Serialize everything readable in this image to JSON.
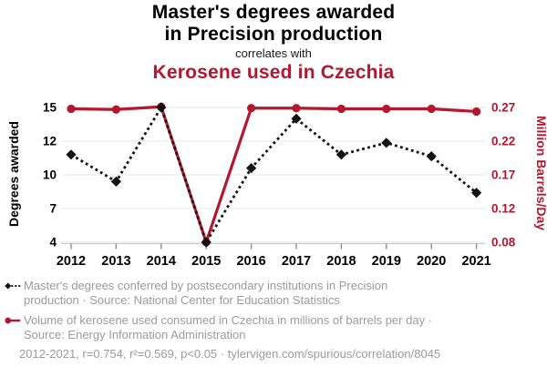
{
  "header": {
    "title_line1": "Master's degrees awarded",
    "title_line2": "in Precision production",
    "connector": "correlates with",
    "subtitle": "Kerosene used in Czechia"
  },
  "colors": {
    "red": "#b5172f",
    "black": "#131313",
    "title_text": "#000000",
    "gray_text": "#9b9b9b",
    "gridline": "#ececec",
    "axis_line": "#cccccc",
    "tick_mark": "#8c8c8c"
  },
  "chart_data": {
    "type": "line",
    "title": "Master's degrees awarded in Precision production correlates with Kerosene used in Czechia",
    "x": [
      2012,
      2013,
      2014,
      2015,
      2016,
      2017,
      2018,
      2019,
      2020,
      2021
    ],
    "x_tick_labels": [
      "2012",
      "2013",
      "2014",
      "2015",
      "2016",
      "2017",
      "2018",
      "2019",
      "2020",
      "2021"
    ],
    "grid": "horizontal",
    "legend_position": "bottom",
    "series": [
      {
        "name": "Master's degrees awarded in Precision production",
        "axis": "left",
        "line_style": "dotted",
        "marker": "diamond",
        "values": [
          11.2,
          9.4,
          15,
          4,
          10.4,
          14,
          11.2,
          11.9,
          11.1,
          8.4
        ]
      },
      {
        "name": "Kerosene used in Czechia",
        "axis": "right",
        "line_style": "solid",
        "marker": "circle",
        "values": [
          0.268,
          0.267,
          0.271,
          0.08,
          0.269,
          0.269,
          0.268,
          0.268,
          0.268,
          0.264
        ]
      }
    ],
    "left_axis": {
      "label": "Degrees awarded",
      "ticks": [
        4,
        7,
        10,
        12,
        15
      ],
      "tick_labels": [
        "4",
        "7",
        "10",
        "12",
        "15"
      ],
      "range": [
        4,
        15
      ]
    },
    "right_axis": {
      "label": "Million Barrels/Day",
      "ticks": [
        0.08,
        0.12,
        0.17,
        0.22,
        0.27
      ],
      "tick_labels": [
        "0.08",
        "0.12",
        "0.17",
        "0.22",
        "0.27"
      ],
      "range": [
        0.08,
        0.27
      ]
    }
  },
  "legend": {
    "items": [
      {
        "series": "degrees",
        "lines": [
          "Master's degrees conferred by postsecondary institutions in Precision",
          "production · Source: National Center for Education Statistics"
        ]
      },
      {
        "series": "kerosene",
        "lines": [
          "Volume of kerosene used consumed in Czechia in millions of barrels per day ·",
          "Source: Energy Information Administration"
        ]
      }
    ]
  },
  "footer": {
    "text": "2012-2021, r=0.754, r²=0.569, p<0.05 · tylervigen.com/spurious/correlation/8045"
  }
}
